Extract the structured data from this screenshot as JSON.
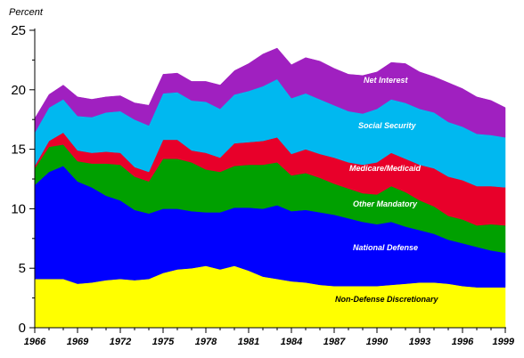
{
  "chart_data": {
    "type": "area",
    "stacked": true,
    "ylabel": "Percent",
    "xlabel": "",
    "title": "",
    "x": [
      1966,
      1967,
      1968,
      1969,
      1970,
      1971,
      1972,
      1973,
      1974,
      1975,
      1976,
      1977,
      1978,
      1979,
      1980,
      1981,
      1982,
      1983,
      1984,
      1985,
      1986,
      1987,
      1988,
      1989,
      1990,
      1991,
      1992,
      1993,
      1994,
      1995,
      1996,
      1997,
      1998,
      1999
    ],
    "xlim": [
      1966,
      1999
    ],
    "ylim": [
      0,
      25
    ],
    "x_ticks": [
      "1966",
      "1969",
      "1972",
      "1975",
      "1978",
      "1981",
      "1984",
      "1987",
      "1990",
      "1993",
      "1996",
      "1999"
    ],
    "y_ticks": [
      "0",
      "5",
      "10",
      "15",
      "20",
      "25"
    ],
    "grid": false,
    "legend": "inline labels",
    "series": [
      {
        "name": "Non-Defense Discretionary",
        "color": "#ffff00",
        "values": [
          4.1,
          4.1,
          4.1,
          3.7,
          3.8,
          4.0,
          4.1,
          4.0,
          4.1,
          4.6,
          4.9,
          5.0,
          5.2,
          4.9,
          5.2,
          4.8,
          4.3,
          4.1,
          3.9,
          3.8,
          3.6,
          3.5,
          3.5,
          3.5,
          3.5,
          3.6,
          3.7,
          3.8,
          3.8,
          3.7,
          3.5,
          3.4,
          3.4,
          3.4
        ]
      },
      {
        "name": "National Defense",
        "color": "#0000ff",
        "values": [
          7.9,
          9.0,
          9.5,
          8.6,
          8.0,
          7.1,
          6.6,
          5.9,
          5.5,
          5.4,
          5.1,
          4.8,
          4.5,
          4.8,
          4.9,
          5.3,
          5.7,
          6.2,
          5.9,
          6.1,
          6.1,
          6.0,
          5.7,
          5.4,
          5.2,
          5.3,
          4.8,
          4.4,
          4.1,
          3.7,
          3.6,
          3.4,
          3.1,
          2.9
        ]
      },
      {
        "name": "Other Mandatory",
        "color": "#00a000",
        "values": [
          1.4,
          2.1,
          1.8,
          1.7,
          2.0,
          2.7,
          3.0,
          2.8,
          2.7,
          4.2,
          4.2,
          4.1,
          3.6,
          3.4,
          3.5,
          3.6,
          3.7,
          3.6,
          3.0,
          3.1,
          2.9,
          2.6,
          2.5,
          2.4,
          2.5,
          3.0,
          2.9,
          2.5,
          2.3,
          2.0,
          2.0,
          1.8,
          2.2,
          2.3
        ]
      },
      {
        "name": "Medicare/Medicaid",
        "color": "#e8002a",
        "values": [
          0.2,
          0.5,
          1.0,
          0.9,
          0.9,
          1.0,
          1.0,
          0.8,
          0.8,
          1.6,
          1.6,
          1.0,
          1.4,
          1.2,
          1.9,
          1.9,
          2.0,
          2.1,
          1.8,
          2.0,
          2.0,
          2.2,
          2.2,
          2.4,
          2.7,
          2.8,
          2.8,
          3.0,
          3.2,
          3.3,
          3.3,
          3.3,
          3.2,
          3.2
        ]
      },
      {
        "name": "Social Security",
        "color": "#00b8f0",
        "values": [
          2.8,
          2.8,
          2.8,
          2.9,
          3.0,
          3.3,
          3.5,
          4.0,
          3.9,
          3.9,
          4.0,
          4.2,
          4.3,
          4.1,
          4.1,
          4.3,
          4.6,
          4.9,
          4.7,
          4.7,
          4.6,
          4.4,
          4.3,
          4.3,
          4.5,
          4.5,
          4.7,
          4.7,
          4.7,
          4.6,
          4.5,
          4.4,
          4.3,
          4.2
        ]
      },
      {
        "name": "Net Interest",
        "color": "#a020c0",
        "values": [
          1.2,
          1.1,
          1.2,
          1.6,
          1.5,
          1.3,
          1.3,
          1.4,
          1.7,
          1.6,
          1.6,
          1.6,
          1.7,
          2.0,
          2.0,
          2.3,
          2.7,
          2.6,
          2.8,
          3.0,
          3.2,
          3.1,
          3.1,
          3.2,
          3.1,
          3.1,
          3.3,
          3.1,
          3.0,
          3.3,
          3.2,
          3.1,
          2.9,
          2.5
        ]
      }
    ],
    "series_labels": [
      "Non-Defense Discretionary",
      "National Defense",
      "Other Mandatory",
      "Medicare/Medicaid",
      "Social Security",
      "Net Interest"
    ],
    "label_colors": [
      "#000000",
      "#ffffff",
      "#ffffff",
      "#ffffff",
      "#ffffff",
      "#ffffff"
    ]
  }
}
